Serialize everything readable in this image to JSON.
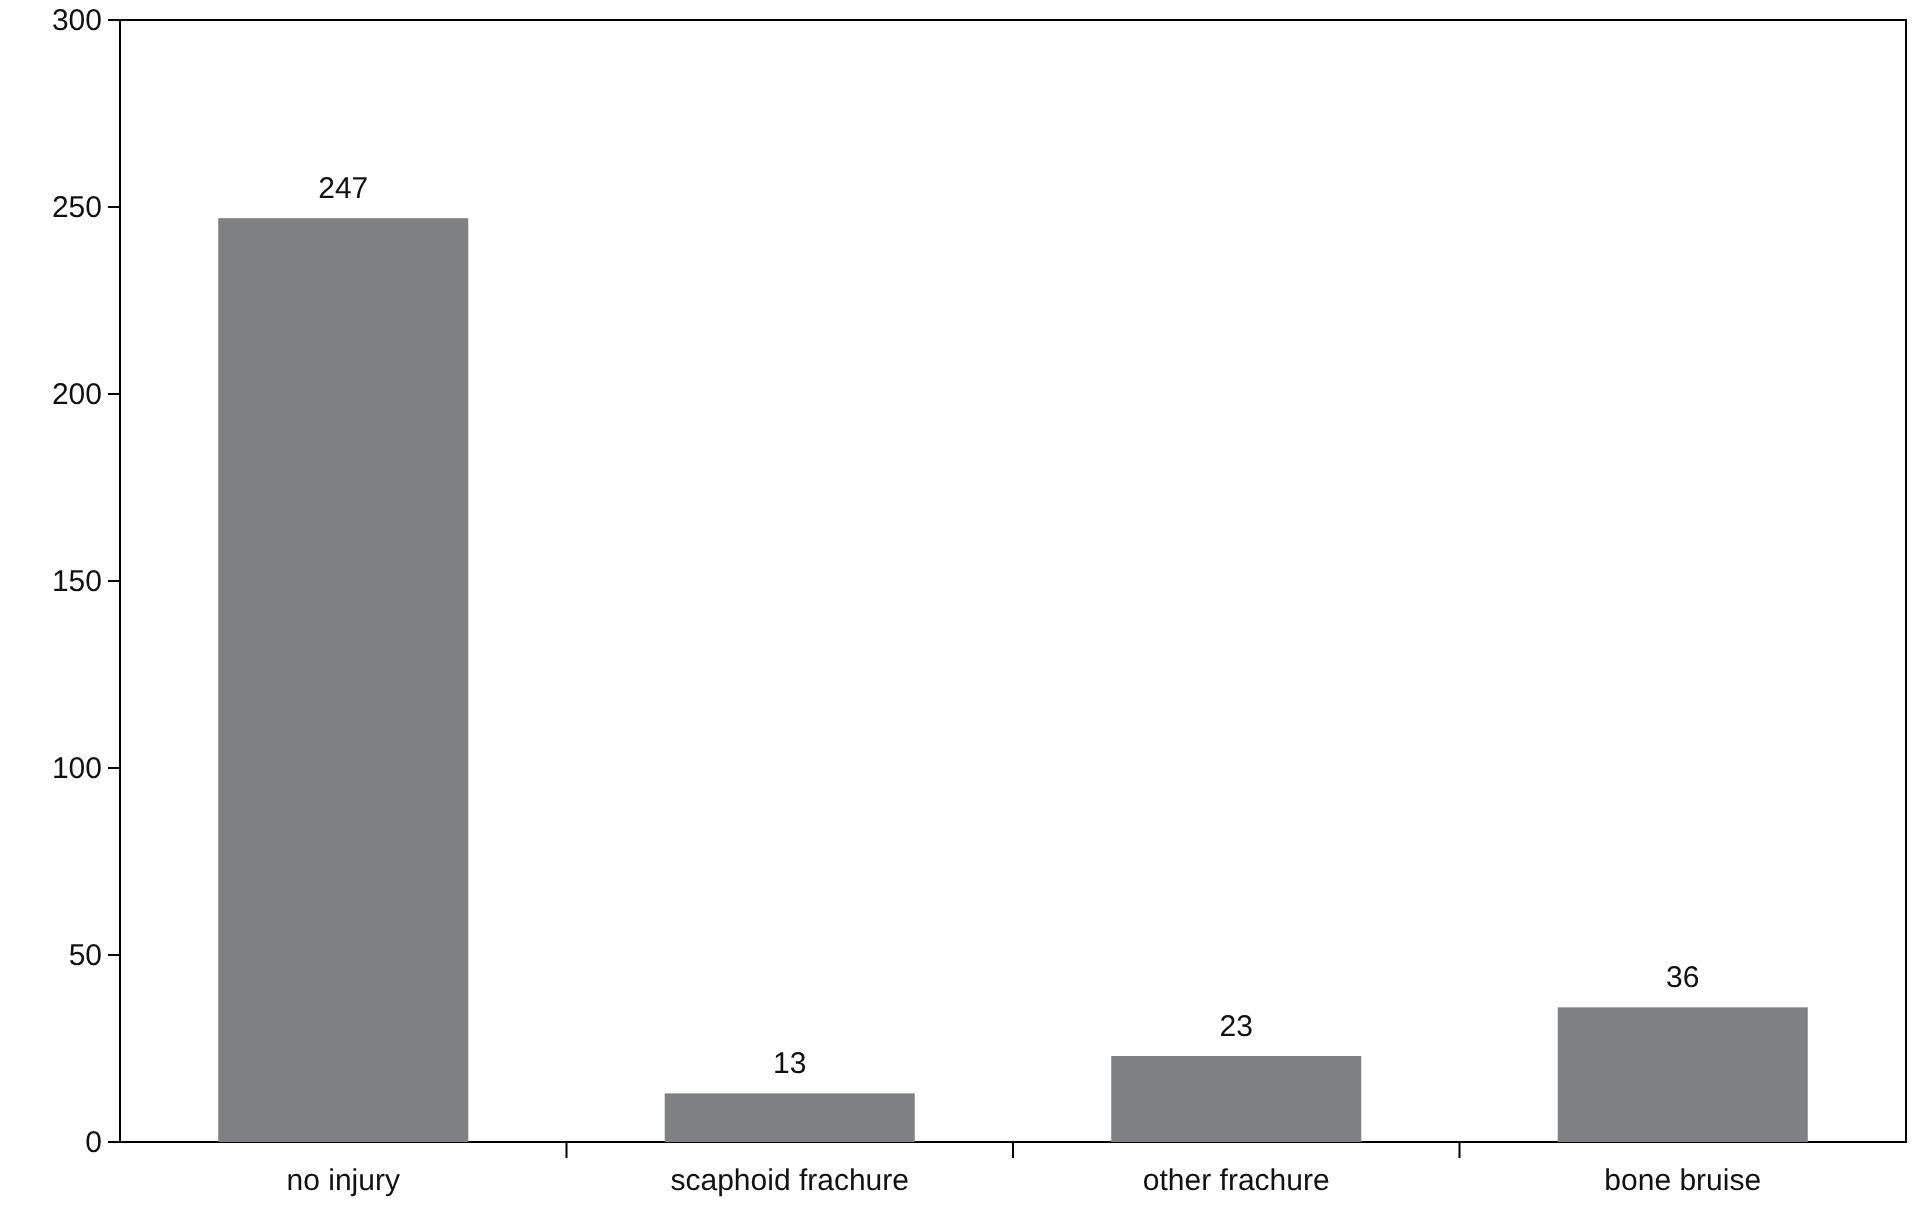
{
  "chart_data": {
    "type": "bar",
    "categories": [
      "no injury",
      "scaphoid frachure",
      "other frachure",
      "bone bruise"
    ],
    "values": [
      247,
      13,
      23,
      36
    ],
    "color": "#7f8084",
    "ylim": [
      0,
      300
    ],
    "yticks": [
      0,
      50,
      100,
      150,
      200,
      250,
      300
    ],
    "grid": false,
    "data_labels": true
  }
}
